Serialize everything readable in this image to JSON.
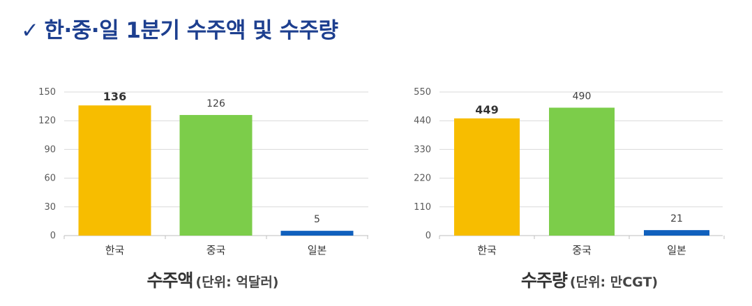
{
  "page": {
    "title_mark": "✓",
    "title": "한·중·일 1분기 수주액 및 수주량"
  },
  "colors": {
    "title": "#1d3f8f",
    "korea": "#f7bd00",
    "china": "#7ccd4a",
    "japan": "#1060bd",
    "grid": "#d9d9d9"
  },
  "chart_data": [
    {
      "type": "bar",
      "categories": [
        "한국",
        "중국",
        "일본"
      ],
      "values": [
        136,
        126,
        5
      ],
      "data_labels": [
        "136",
        "126",
        "5"
      ],
      "emphasized_index": 0,
      "ylim": [
        0,
        150
      ],
      "yticks": [
        0,
        30,
        60,
        90,
        120,
        150
      ],
      "ytick_labels": [
        "0",
        "30",
        "60",
        "90",
        "120",
        "150"
      ],
      "grid": true,
      "legend": "none",
      "caption": "수주액",
      "unit": "(단위: 억달러)"
    },
    {
      "type": "bar",
      "categories": [
        "한국",
        "중국",
        "일본"
      ],
      "values": [
        449,
        490,
        21
      ],
      "data_labels": [
        "449",
        "490",
        "21"
      ],
      "emphasized_index": 0,
      "ylim": [
        0,
        550
      ],
      "yticks": [
        0,
        110,
        220,
        330,
        440,
        550
      ],
      "ytick_labels": [
        "0",
        "110",
        "220",
        "330",
        "440",
        "550"
      ],
      "grid": true,
      "legend": "none",
      "caption": "수주량",
      "unit": "(단위: 만CGT)"
    }
  ]
}
